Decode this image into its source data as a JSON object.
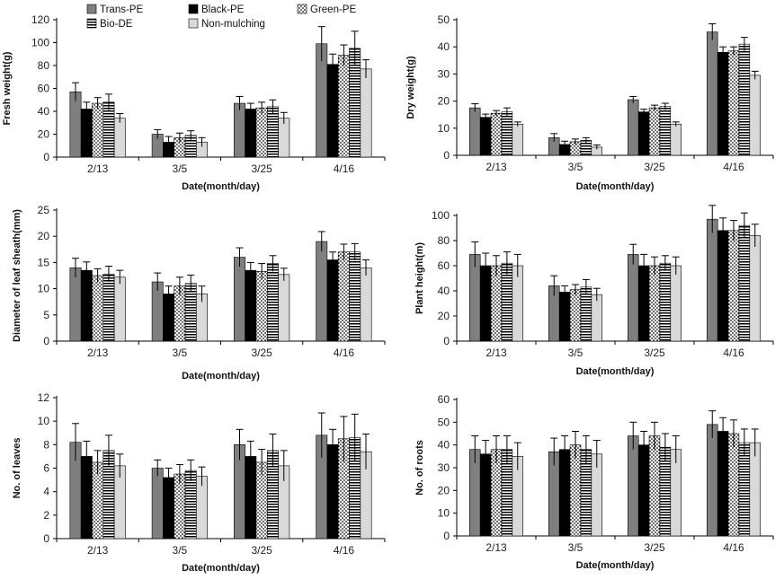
{
  "chart_data": [
    {
      "type": "bar",
      "categories": [
        "2/13",
        "3/5",
        "3/25",
        "4/16"
      ],
      "xlabel": "Date(month/day)",
      "ylabel": "Fresh weight(g)",
      "ylim": [
        0,
        120
      ],
      "yticks": [
        0,
        20,
        40,
        60,
        80,
        100,
        120
      ],
      "legend": "top-left",
      "series": [
        {
          "name": "Trans-PE",
          "values": [
            57,
            20,
            47,
            99
          ],
          "errors": [
            8,
            4,
            6,
            15
          ]
        },
        {
          "name": "Black-PE",
          "values": [
            42,
            13,
            42,
            81
          ],
          "errors": [
            6,
            5,
            5,
            9
          ]
        },
        {
          "name": "Green-PE",
          "values": [
            47,
            17,
            43,
            89
          ],
          "errors": [
            5,
            4,
            5,
            9
          ]
        },
        {
          "name": "Bio-DE",
          "values": [
            48,
            19,
            44,
            95
          ],
          "errors": [
            7,
            4,
            6,
            15
          ]
        },
        {
          "name": "Non-mulching",
          "values": [
            34,
            13,
            34,
            77
          ],
          "errors": [
            4,
            4,
            5,
            8
          ]
        }
      ]
    },
    {
      "type": "bar",
      "categories": [
        "2/13",
        "3/5",
        "3/25",
        "4/16"
      ],
      "xlabel": "Date(month/day)",
      "ylabel": "Dry weight(g)",
      "ylim": [
        0,
        50
      ],
      "yticks": [
        0,
        10,
        20,
        30,
        40,
        50
      ],
      "series": [
        {
          "name": "Trans-PE",
          "values": [
            17.5,
            6.5,
            20.5,
            45.5
          ],
          "errors": [
            1.5,
            1.5,
            1.2,
            3
          ]
        },
        {
          "name": "Black-PE",
          "values": [
            14,
            4,
            16,
            38
          ],
          "errors": [
            1.2,
            1.2,
            1,
            2
          ]
        },
        {
          "name": "Green-PE",
          "values": [
            15.5,
            5,
            17.5,
            38.5
          ],
          "errors": [
            1,
            1,
            1,
            1.5
          ]
        },
        {
          "name": "Bio-DE",
          "values": [
            16,
            5.5,
            18,
            41
          ],
          "errors": [
            1.5,
            1,
            1.2,
            2.5
          ]
        },
        {
          "name": "Non-mulching",
          "values": [
            11.5,
            3,
            11.5,
            29.5
          ],
          "errors": [
            0.8,
            0.8,
            0.8,
            1.5
          ]
        }
      ]
    },
    {
      "type": "bar",
      "categories": [
        "2/13",
        "3/5",
        "3/25",
        "4/16"
      ],
      "xlabel": "Date(month/day)",
      "ylabel": "Diameter of leaf sheath(mm)",
      "ylim": [
        0,
        25
      ],
      "yticks": [
        0,
        5,
        10,
        15,
        20,
        25
      ],
      "series": [
        {
          "name": "Trans-PE",
          "values": [
            14,
            11.3,
            16,
            19
          ],
          "errors": [
            1.8,
            1.7,
            1.8,
            1.9
          ]
        },
        {
          "name": "Black-PE",
          "values": [
            13.5,
            9,
            13.5,
            15.5
          ],
          "errors": [
            1.6,
            1.5,
            1.5,
            1.5
          ]
        },
        {
          "name": "Green-PE",
          "values": [
            12.5,
            10.5,
            13.3,
            17
          ],
          "errors": [
            1.3,
            1.7,
            1.5,
            1.5
          ]
        },
        {
          "name": "Bio-DE",
          "values": [
            12.8,
            11,
            14.8,
            17
          ],
          "errors": [
            1.5,
            1.6,
            1.5,
            1.6
          ]
        },
        {
          "name": "Non-mulching",
          "values": [
            12.2,
            9,
            12.7,
            14
          ],
          "errors": [
            1.3,
            1.5,
            1.2,
            1.5
          ]
        }
      ]
    },
    {
      "type": "bar",
      "categories": [
        "2/13",
        "3/5",
        "3/25",
        "4/16"
      ],
      "xlabel": "Date(month/day)",
      "ylabel": "Plant height(m)",
      "ylim": [
        0,
        100
      ],
      "yticks": [
        0,
        20,
        40,
        60,
        80,
        100
      ],
      "series": [
        {
          "name": "Trans-PE",
          "values": [
            69,
            44,
            69,
            97
          ],
          "errors": [
            10,
            8,
            8,
            11
          ]
        },
        {
          "name": "Black-PE",
          "values": [
            60,
            39,
            60,
            88
          ],
          "errors": [
            10,
            5,
            9,
            10
          ]
        },
        {
          "name": "Green-PE",
          "values": [
            60,
            41,
            60,
            88
          ],
          "errors": [
            8,
            4,
            7,
            8
          ]
        },
        {
          "name": "Bio-DE",
          "values": [
            62,
            43,
            62,
            92
          ],
          "errors": [
            9,
            6,
            6,
            10
          ]
        },
        {
          "name": "Non-mulching",
          "values": [
            60,
            37,
            60,
            84
          ],
          "errors": [
            9,
            5,
            7,
            9
          ]
        }
      ]
    },
    {
      "type": "bar",
      "categories": [
        "2/13",
        "3/5",
        "3/25",
        "4/16"
      ],
      "xlabel": "Date(month/day)",
      "ylabel": "No. of leaves",
      "ylim": [
        0,
        12
      ],
      "yticks": [
        0,
        2,
        4,
        6,
        8,
        10,
        12
      ],
      "series": [
        {
          "name": "Trans-PE",
          "values": [
            8.2,
            6,
            8,
            8.8
          ],
          "errors": [
            1.6,
            0.7,
            1.3,
            1.9
          ]
        },
        {
          "name": "Black-PE",
          "values": [
            7,
            5.2,
            7,
            8
          ],
          "errors": [
            1.3,
            0.8,
            1.3,
            1.3
          ]
        },
        {
          "name": "Green-PE",
          "values": [
            6.5,
            5.5,
            6.5,
            8.5
          ],
          "errors": [
            1,
            0.8,
            1.1,
            1.9
          ]
        },
        {
          "name": "Bio-DE",
          "values": [
            7.5,
            5.8,
            7.5,
            8.6
          ],
          "errors": [
            1.3,
            0.9,
            1.4,
            2
          ]
        },
        {
          "name": "Non-mulching",
          "values": [
            6.2,
            5.3,
            6.2,
            7.4
          ],
          "errors": [
            1,
            0.8,
            1.3,
            1.5
          ]
        }
      ]
    },
    {
      "type": "bar",
      "categories": [
        "2/13",
        "3/5",
        "3/25",
        "4/16"
      ],
      "xlabel": "Date(month/day)",
      "ylabel": "No. of roots",
      "ylim": [
        0,
        60
      ],
      "yticks": [
        0,
        10,
        20,
        30,
        40,
        50,
        60
      ],
      "series": [
        {
          "name": "Trans-PE",
          "values": [
            38,
            37,
            44,
            49
          ],
          "errors": [
            6,
            6,
            6,
            6
          ]
        },
        {
          "name": "Black-PE",
          "values": [
            36,
            38,
            40,
            46
          ],
          "errors": [
            6,
            6,
            6,
            6
          ]
        },
        {
          "name": "Green-PE",
          "values": [
            38,
            40,
            44,
            45
          ],
          "errors": [
            6,
            6,
            6,
            6
          ]
        },
        {
          "name": "Bio-DE",
          "values": [
            38,
            38,
            39,
            41
          ],
          "errors": [
            6,
            6,
            6,
            6
          ]
        },
        {
          "name": "Non-mulching",
          "values": [
            35,
            36,
            38,
            41
          ],
          "errors": [
            6,
            6,
            6,
            6
          ]
        }
      ]
    }
  ]
}
